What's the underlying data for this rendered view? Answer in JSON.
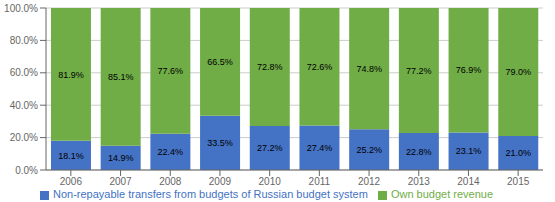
{
  "chart_data": {
    "type": "bar",
    "categories": [
      "2006",
      "2007",
      "2008",
      "2009",
      "2010",
      "2011",
      "2012",
      "2013",
      "2014",
      "2015"
    ],
    "series": [
      {
        "name": "Non-repayable transfers from budgets of Russian budget system",
        "color": "#4472C4",
        "values": [
          18.1,
          14.9,
          22.4,
          33.5,
          27.2,
          27.4,
          25.2,
          22.8,
          23.1,
          21.0
        ],
        "value_labels": [
          "18.1%",
          "14.9%",
          "22.4%",
          "33.5%",
          "27.2%",
          "27.4%",
          "25.2%",
          "22.8%",
          "23.1%",
          "21.0%"
        ]
      },
      {
        "name": "Own budget revenue",
        "color": "#70AD47",
        "values": [
          81.9,
          85.1,
          77.6,
          66.5,
          72.8,
          72.6,
          74.8,
          77.2,
          76.9,
          79.0
        ],
        "value_labels": [
          "81.9%",
          "85.1%",
          "77.6%",
          "66.5%",
          "72.8%",
          "72.6%",
          "74.8%",
          "77.2%",
          "76.9%",
          "79.0%"
        ]
      }
    ],
    "ylim": [
      0,
      100
    ],
    "yticks": [
      {
        "value": 0,
        "label": "0.0%"
      },
      {
        "value": 20,
        "label": "20.0%"
      },
      {
        "value": 40,
        "label": "40.0%"
      },
      {
        "value": 60,
        "label": "60.0%"
      },
      {
        "value": 80,
        "label": "80.0%"
      },
      {
        "value": 100,
        "label": "100.0%"
      }
    ],
    "grid": true,
    "stacked": true,
    "data_labels": true,
    "legend": "bottom"
  }
}
